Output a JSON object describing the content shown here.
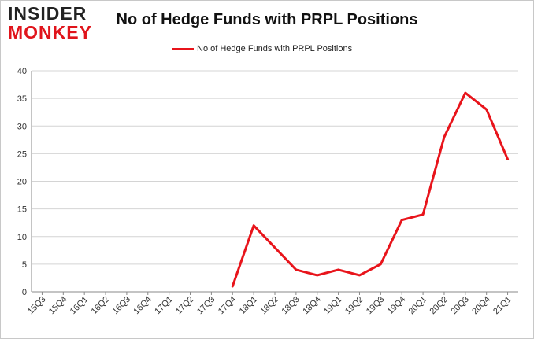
{
  "logo": {
    "line1": "INSIDER",
    "line2": "MONKEY"
  },
  "chart_data": {
    "type": "line",
    "title": "No of Hedge Funds with PRPL Positions",
    "xlabel": "",
    "ylabel": "",
    "categories": [
      "15Q3",
      "15Q4",
      "16Q1",
      "16Q2",
      "16Q3",
      "16Q4",
      "17Q1",
      "17Q2",
      "17Q3",
      "17Q4",
      "18Q1",
      "18Q2",
      "18Q3",
      "18Q4",
      "19Q1",
      "19Q2",
      "19Q3",
      "19Q4",
      "20Q1",
      "20Q2",
      "20Q3",
      "20Q4",
      "21Q1"
    ],
    "series": [
      {
        "name": "No of Hedge Funds with PRPL Positions",
        "color": "#e8141b",
        "values": [
          null,
          null,
          null,
          null,
          null,
          null,
          null,
          null,
          null,
          1,
          12,
          8,
          4,
          3,
          4,
          3,
          5,
          13,
          14,
          28,
          36,
          33,
          24
        ]
      }
    ],
    "ylim": [
      0,
      40
    ],
    "yticks": [
      0,
      5,
      10,
      15,
      20,
      25,
      30,
      35,
      40
    ],
    "grid": true,
    "legend_position": "top-center"
  }
}
